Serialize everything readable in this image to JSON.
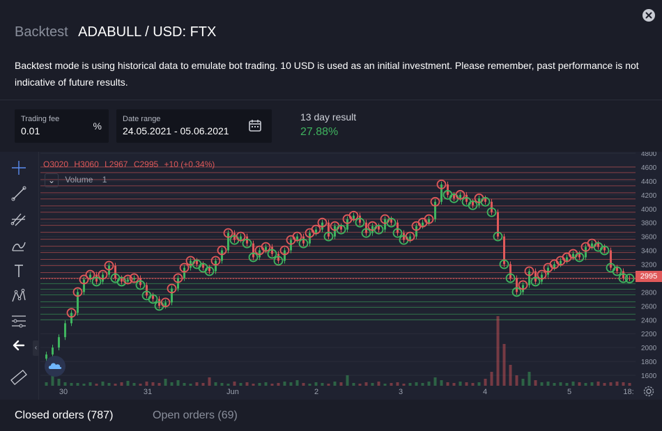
{
  "header": {
    "crumb": "Backtest",
    "pair": "ADABULL / USD: FTX"
  },
  "description": "Backtest mode is using historical data to emulate bot trading. 10 USD is used as an initial investment. Please remember, past performance is not indicative of future results.",
  "trading_fee": {
    "label": "Trading fee",
    "value": "0.01",
    "unit": "%"
  },
  "date_range": {
    "label": "Date range",
    "value": "24.05.2021 - 05.06.2021"
  },
  "result": {
    "label": "13 day result",
    "value": "27.88%"
  },
  "legend": {
    "o": "O3020",
    "h": "H3060",
    "l": "L2967",
    "c": "C2995",
    "change": "+10 (+0.34%)",
    "volume_label": "Volume",
    "volume_value": "1"
  },
  "last_price_tag": "2995",
  "colors": {
    "up": "#3fb45f",
    "down": "#e0595a",
    "buy_circle": "#3fb45f",
    "sell_circle": "#e0595a",
    "accent": "#3fb45f"
  },
  "tabs": [
    {
      "label": "Closed orders (787)",
      "active": true
    },
    {
      "label": "Open orders (69)",
      "active": false
    }
  ],
  "toolbar_icons": [
    "crosshair-icon",
    "trend-line-icon",
    "pitchfork-icon",
    "brush-icon",
    "text-icon",
    "pattern-icon",
    "fib-retracement-icon",
    "back-arrow-icon",
    "ruler-icon"
  ],
  "chart_data": {
    "type": "candlestick",
    "y_ticks": [
      1600,
      1800,
      2000,
      2200,
      2400,
      2600,
      2800,
      3000,
      3200,
      3400,
      3600,
      3800,
      4000,
      4200,
      4400,
      4600,
      4800
    ],
    "y_tick_labels": [
      "1600",
      "1800",
      "2000",
      "2200",
      "2400",
      "2600",
      "2800",
      "3000",
      "3200",
      "3400",
      "3600",
      "3800",
      "4000",
      "4200",
      "4400",
      "4600",
      "4800"
    ],
    "ylim": [
      1450,
      4820
    ],
    "x_labels": [
      "30",
      "31",
      "Jun",
      "2",
      "3",
      "4",
      "5",
      "18:"
    ],
    "close_series": [
      1900,
      2000,
      2150,
      2350,
      2500,
      2800,
      2980,
      3050,
      2950,
      3050,
      3180,
      3000,
      2950,
      2980,
      3000,
      2900,
      2750,
      2700,
      2600,
      2650,
      2850,
      3000,
      3150,
      3250,
      3200,
      3150,
      3100,
      3250,
      3400,
      3650,
      3550,
      3600,
      3500,
      3300,
      3400,
      3450,
      3350,
      3250,
      3400,
      3550,
      3600,
      3500,
      3650,
      3700,
      3800,
      3600,
      3750,
      3700,
      3850,
      3900,
      3800,
      3650,
      3750,
      3700,
      3850,
      3800,
      3650,
      3550,
      3600,
      3750,
      3800,
      3850,
      4100,
      4350,
      4200,
      4150,
      4200,
      4100,
      4050,
      4150,
      4100,
      3950,
      3600,
      3200,
      3000,
      2800,
      2900,
      3100,
      2950,
      3050,
      3150,
      3200,
      3250,
      3300,
      3350,
      3300,
      3450,
      3500,
      3450,
      3400,
      3150,
      3100,
      3000,
      2995
    ],
    "sell_levels": [
      3000,
      3080,
      3180,
      3270,
      3370,
      3460,
      3560,
      3660,
      3760,
      3850,
      3950,
      4040,
      4140,
      4230,
      4330,
      4420,
      4520,
      4600
    ],
    "buy_levels": [
      2400,
      2480,
      2580,
      2660,
      2760,
      2840,
      2920
    ],
    "volume_relative": [
      0.05,
      0.3,
      0.1,
      0.05,
      0.04,
      0.04,
      0.03,
      0.05,
      0.03,
      0.06,
      0.04,
      0.03,
      0.05,
      0.07,
      0.04,
      0.03,
      0.06,
      0.05,
      0.04,
      0.1,
      0.05,
      0.08,
      0.04,
      0.03,
      0.05,
      0.04,
      0.12,
      0.05,
      0.04,
      0.03,
      0.06,
      0.04,
      0.05,
      0.03,
      0.04,
      0.05,
      0.03,
      0.04,
      0.06,
      0.05,
      0.08,
      0.04,
      0.03,
      0.05,
      0.04,
      0.03,
      0.06,
      0.05,
      0.15,
      0.04,
      0.03,
      0.05,
      0.04,
      0.06,
      0.03,
      0.04,
      0.05,
      0.03,
      0.04,
      0.05,
      0.04,
      0.06,
      0.12,
      0.08,
      0.05,
      0.04,
      0.06,
      0.05,
      0.04,
      0.05,
      0.1,
      0.2,
      1.0,
      0.6,
      0.3,
      0.15,
      0.1,
      0.2,
      0.08,
      0.05,
      0.06,
      0.04,
      0.05,
      0.04,
      0.06,
      0.05,
      0.04,
      0.05,
      0.06,
      0.04,
      0.05,
      0.06,
      0.05,
      0.04
    ]
  }
}
